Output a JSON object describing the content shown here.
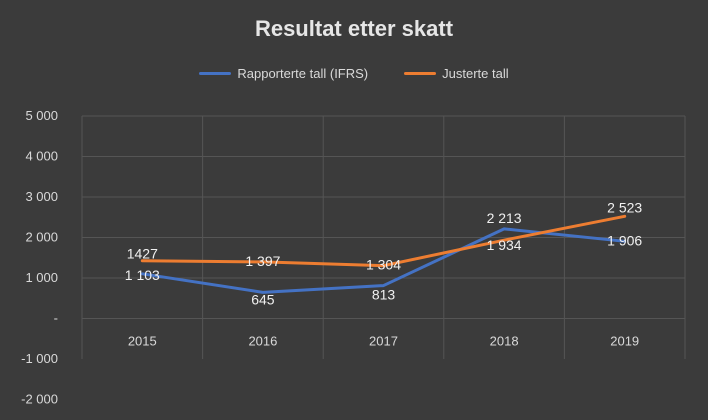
{
  "chart_data": {
    "type": "line",
    "title": "Resultat etter skatt",
    "categories": [
      "2015",
      "2016",
      "2017",
      "2018",
      "2019"
    ],
    "y_tick_labels": [
      "5 000",
      "4 000",
      "3 000",
      "2 000",
      "1 000",
      "-",
      "-1 000",
      "-2 000"
    ],
    "ylim": [
      -2000,
      5000
    ],
    "grid": true,
    "legend_position": "top",
    "series": [
      {
        "name": "Rapporterte tall (IFRS)",
        "color": "#4472c4",
        "values": [
          1103,
          645,
          813,
          2213,
          1906
        ],
        "labels": [
          "1 103",
          "645",
          "813",
          "2 213",
          "1 906"
        ]
      },
      {
        "name": "Justerte tall",
        "color": "#ed7d31",
        "values": [
          1427,
          1397,
          1304,
          1934,
          2523
        ],
        "labels": [
          "1427",
          "1 397",
          "1 304",
          "1 934",
          "2 523"
        ]
      }
    ]
  }
}
